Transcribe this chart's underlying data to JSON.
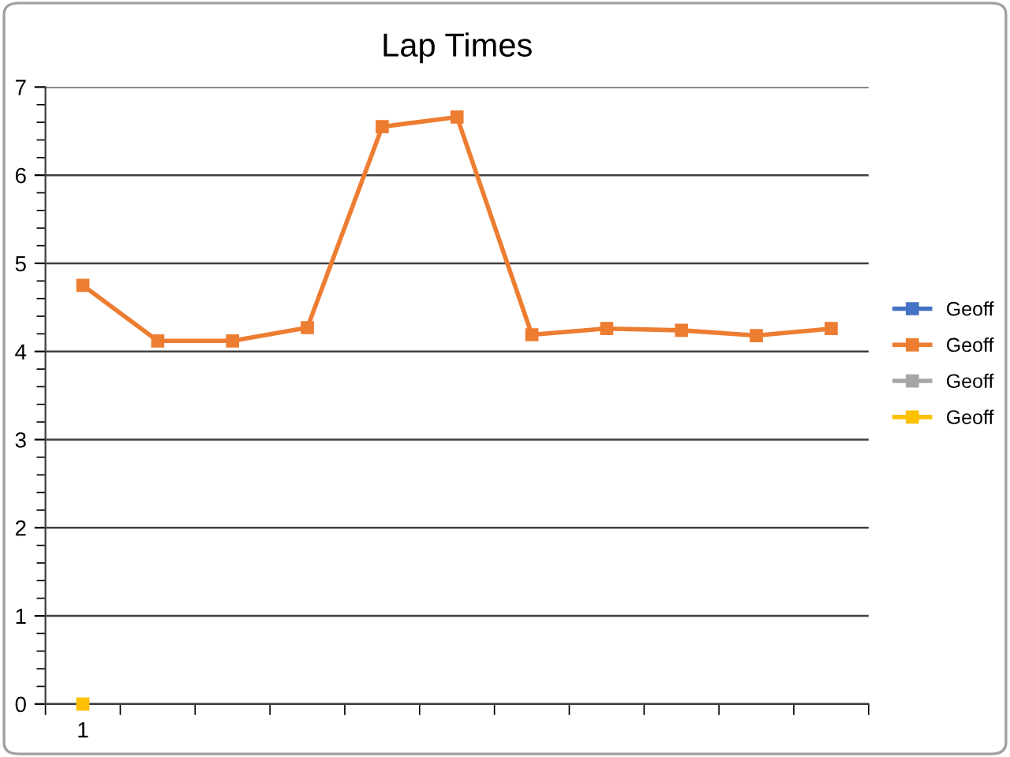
{
  "chart_data": {
    "type": "line",
    "title": "Lap Times",
    "categories": [
      "1",
      null,
      null,
      null,
      null,
      null,
      null,
      null,
      null,
      null,
      null
    ],
    "series": [
      {
        "name": "Geoff",
        "color": "#4472c4",
        "values": [
          null,
          null,
          null,
          null,
          null,
          null,
          null,
          null,
          null,
          null,
          null
        ]
      },
      {
        "name": "Geoff",
        "color": "#ed7d31",
        "values": [
          4.75,
          4.12,
          4.12,
          4.27,
          6.55,
          6.66,
          4.19,
          4.26,
          4.24,
          4.18,
          4.26
        ]
      },
      {
        "name": "Geoff",
        "color": "#a5a5a5",
        "values": [
          null,
          null,
          null,
          null,
          null,
          null,
          null,
          null,
          null,
          null,
          null
        ]
      },
      {
        "name": "Geoff",
        "color": "#ffc000",
        "values": [
          0,
          null,
          null,
          null,
          null,
          null,
          null,
          null,
          null,
          null,
          null
        ]
      }
    ],
    "ylim": [
      0,
      7
    ],
    "yticks": [
      0,
      1,
      2,
      3,
      4,
      5,
      6,
      7
    ],
    "grid": "y",
    "legend": "right",
    "marker": "square",
    "line_style": "solid"
  }
}
